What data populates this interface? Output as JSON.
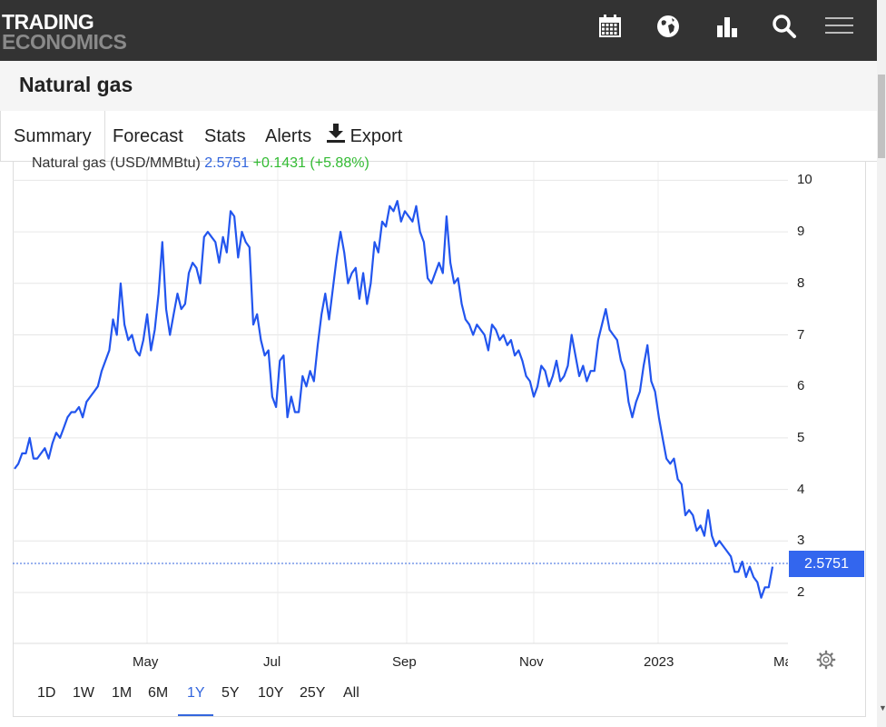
{
  "header": {
    "logo_line1": "TRADING",
    "logo_line2": "ECONOMICS",
    "icons": [
      "calendar-icon",
      "globe-icon",
      "bar-chart-icon",
      "search-icon",
      "menu-icon"
    ]
  },
  "page": {
    "title": "Natural gas"
  },
  "tabs": [
    {
      "label": "Summary"
    },
    {
      "label": "Forecast"
    },
    {
      "label": "Stats"
    },
    {
      "label": "Alerts"
    },
    {
      "label": "Export",
      "icon": "download-icon"
    }
  ],
  "chart_legend": {
    "name": "Natural gas (USD/MMBtu)",
    "price": "2.5751",
    "change": "+0.1431 (+5.88%)"
  },
  "price_tag": "2.5751",
  "ranges": [
    {
      "label": "1D"
    },
    {
      "label": "1W"
    },
    {
      "label": "1M"
    },
    {
      "label": "6M"
    },
    {
      "label": "1Y",
      "active": true
    },
    {
      "label": "5Y"
    },
    {
      "label": "10Y"
    },
    {
      "label": "25Y"
    },
    {
      "label": "All"
    }
  ],
  "colors": {
    "line": "#2255ee",
    "accent": "#3366dd",
    "change": "#33bb33",
    "header": "#333333"
  },
  "chart_data": {
    "type": "line",
    "ylim": [
      1,
      10
    ],
    "yticks": [
      "2",
      "3",
      "4",
      "5",
      "6",
      "7",
      "8",
      "9",
      "10"
    ],
    "xticks": [
      "May",
      "Jul",
      "Sep",
      "Nov",
      "2023",
      "Mar"
    ],
    "series": [
      {
        "values": [
          4.4,
          4.5,
          4.7,
          4.7,
          5.0,
          4.6,
          4.6,
          4.7,
          4.8,
          4.6,
          4.9,
          5.1,
          5.0,
          5.2,
          5.4,
          5.5,
          5.5,
          5.6,
          5.4,
          5.7,
          5.8,
          5.9,
          6.0,
          6.3,
          6.5,
          6.7,
          7.3,
          7.0,
          8.0,
          7.2,
          6.9,
          7.0,
          6.7,
          6.6,
          6.9,
          7.4,
          6.7,
          7.1,
          7.8,
          8.8,
          7.5,
          7.0,
          7.4,
          7.8,
          7.5,
          7.6,
          8.2,
          8.4,
          8.3,
          8.0,
          8.9,
          9.0,
          8.9,
          8.8,
          8.4,
          8.9,
          8.6,
          9.4,
          9.3,
          8.5,
          9.0,
          8.8,
          8.7,
          7.2,
          7.4,
          6.9,
          6.6,
          6.7,
          5.8,
          5.6,
          6.5,
          6.6,
          5.4,
          5.8,
          5.5,
          5.5,
          6.2,
          6.0,
          6.3,
          6.1,
          6.8,
          7.4,
          7.8,
          7.3,
          7.9,
          8.5,
          9.0,
          8.6,
          8.0,
          8.2,
          8.3,
          7.7,
          8.2,
          7.6,
          8.0,
          8.8,
          8.6,
          9.2,
          9.1,
          9.5,
          9.4,
          9.6,
          9.2,
          9.4,
          9.3,
          9.2,
          9.5,
          9.0,
          8.8,
          8.1,
          8.0,
          8.2,
          8.4,
          8.2,
          9.3,
          8.4,
          8.0,
          8.1,
          7.6,
          7.3,
          7.2,
          7.0,
          7.2,
          7.1,
          7.0,
          6.7,
          7.2,
          7.1,
          6.9,
          7.0,
          6.8,
          6.9,
          6.6,
          6.7,
          6.5,
          6.2,
          6.1,
          5.8,
          6.0,
          6.4,
          6.3,
          6.0,
          6.2,
          6.5,
          6.1,
          6.2,
          6.4,
          7.0,
          6.6,
          6.2,
          6.4,
          6.1,
          6.3,
          6.3,
          6.9,
          7.2,
          7.5,
          7.1,
          7.0,
          6.9,
          6.5,
          6.3,
          5.7,
          5.4,
          5.7,
          5.9,
          6.4,
          6.8,
          6.1,
          5.9,
          5.4,
          5.0,
          4.6,
          4.5,
          4.6,
          4.2,
          4.1,
          3.5,
          3.6,
          3.5,
          3.2,
          3.3,
          3.1,
          3.6,
          3.1,
          2.9,
          3.0,
          2.9,
          2.8,
          2.7,
          2.4,
          2.4,
          2.6,
          2.3,
          2.5,
          2.3,
          2.2,
          1.9,
          2.1,
          2.1,
          2.5
        ]
      }
    ],
    "last_value": 2.5751
  }
}
